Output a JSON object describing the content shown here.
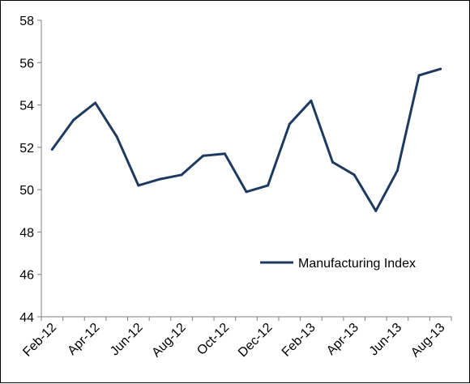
{
  "chart_data": {
    "type": "line",
    "title": "",
    "xlabel": "",
    "ylabel": "",
    "ylim": [
      44,
      58
    ],
    "yticks": [
      "44",
      "46",
      "48",
      "50",
      "52",
      "54",
      "56",
      "58"
    ],
    "x": [
      "Feb-12",
      "Mar-12",
      "Apr-12",
      "May-12",
      "Jun-12",
      "Jul-12",
      "Aug-12",
      "Sep-12",
      "Oct-12",
      "Nov-12",
      "Dec-12",
      "Jan-13",
      "Feb-13",
      "Mar-13",
      "Apr-13",
      "May-13",
      "Jun-13",
      "Jul-13",
      "Aug-13"
    ],
    "xtick_labels": [
      "Feb-12",
      "Apr-12",
      "Jun-12",
      "Aug-12",
      "Oct-12",
      "Dec-12",
      "Feb-13",
      "Apr-13",
      "Jun-13",
      "Aug-13"
    ],
    "series": [
      {
        "name": "Manufacturing Index",
        "color": "#1F3A5F",
        "values": [
          51.9,
          53.3,
          54.1,
          52.5,
          50.2,
          50.5,
          50.7,
          51.6,
          51.7,
          49.9,
          50.2,
          53.1,
          54.2,
          51.3,
          50.7,
          49.0,
          50.9,
          55.4,
          55.7
        ]
      }
    ],
    "grid": false,
    "legend_position": "lower-right"
  }
}
